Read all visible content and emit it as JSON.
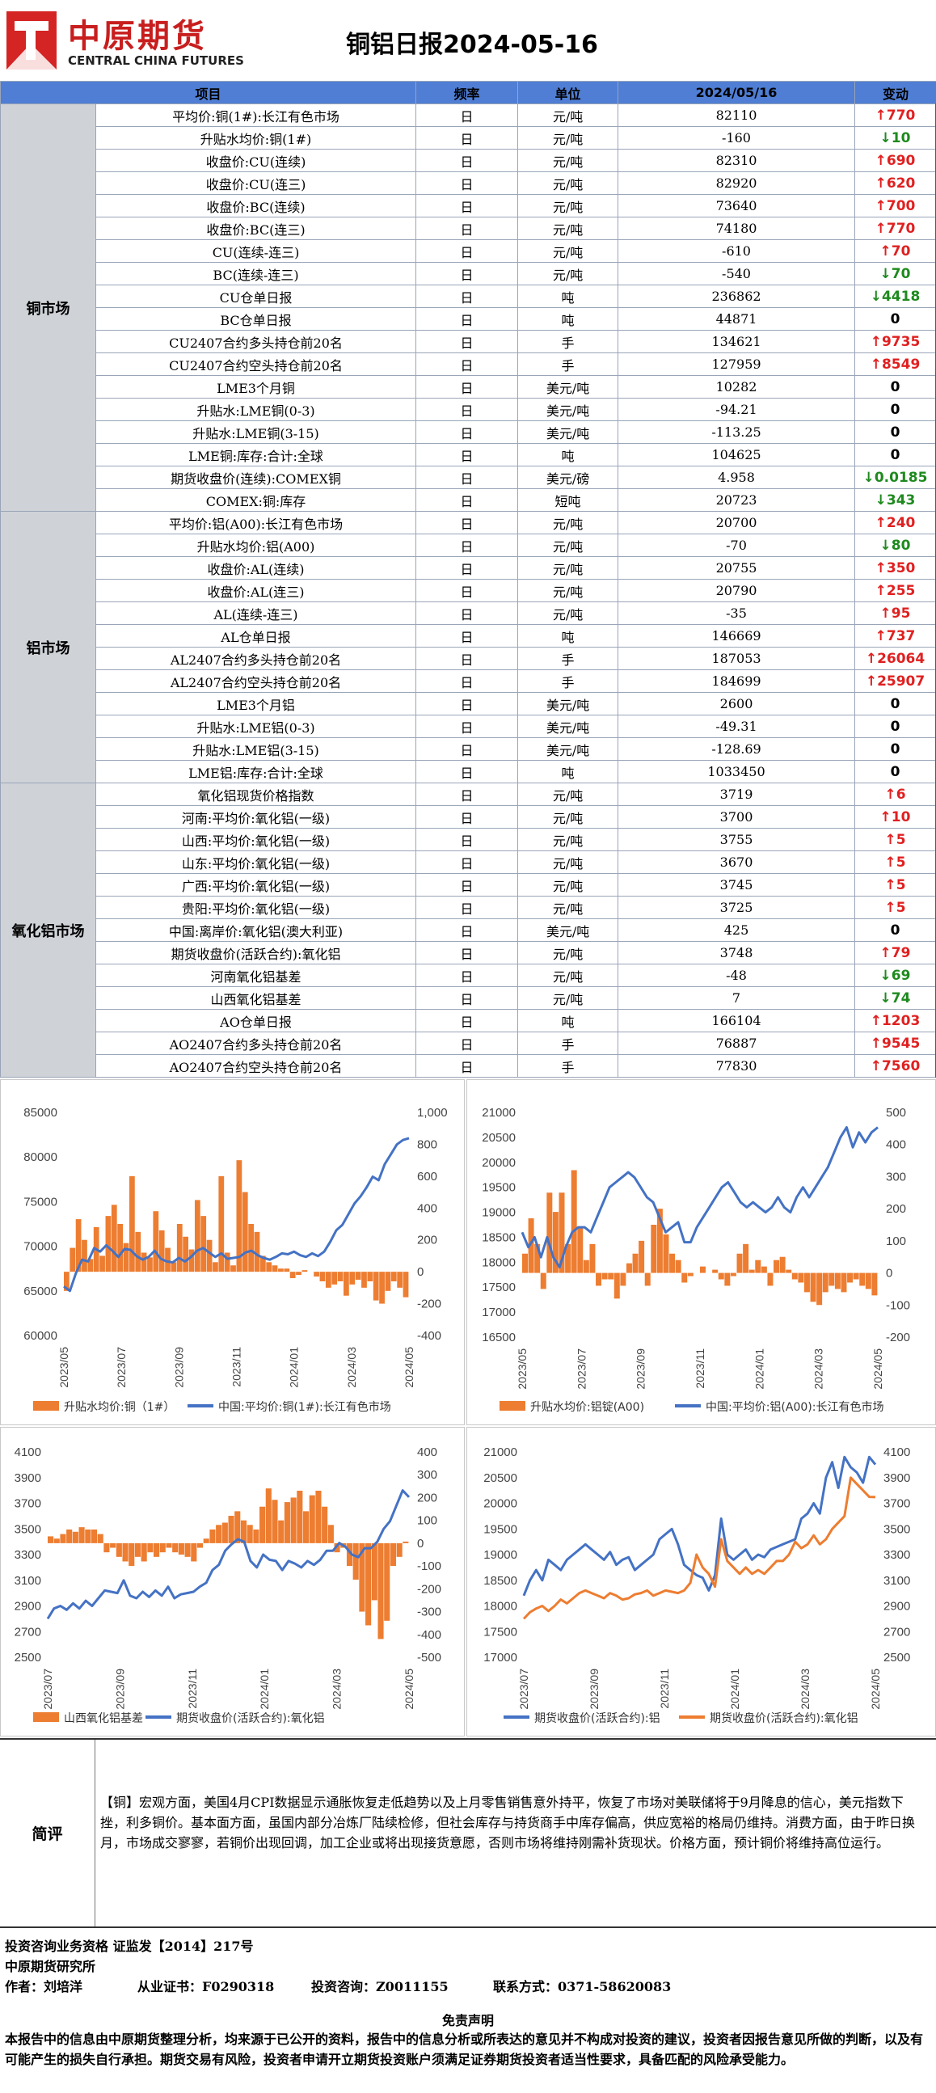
{
  "header": {
    "brand": "中原期货",
    "brand_en": "CENTRAL CHINA FUTURES",
    "title": "铜铝日报2024-05-16"
  },
  "table": {
    "headers": [
      "项目",
      "频率",
      "单位",
      "2024/05/16",
      "变动"
    ],
    "sections": [
      {
        "name": "铜市场",
        "rows": [
          [
            "平均价:铜(1#):长江有色市场",
            "日",
            "元/吨",
            "82110",
            "up",
            "770"
          ],
          [
            "升贴水均价:铜(1#)",
            "日",
            "元/吨",
            "-160",
            "down",
            "10"
          ],
          [
            "收盘价:CU(连续)",
            "日",
            "元/吨",
            "82310",
            "up",
            "690"
          ],
          [
            "收盘价:CU(连三)",
            "日",
            "元/吨",
            "82920",
            "up",
            "620"
          ],
          [
            "收盘价:BC(连续)",
            "日",
            "元/吨",
            "73640",
            "up",
            "700"
          ],
          [
            "收盘价:BC(连三)",
            "日",
            "元/吨",
            "74180",
            "up",
            "770"
          ],
          [
            "CU(连续-连三)",
            "日",
            "元/吨",
            "-610",
            "up",
            "70"
          ],
          [
            "BC(连续-连三)",
            "日",
            "元/吨",
            "-540",
            "down",
            "70"
          ],
          [
            "CU仓单日报",
            "日",
            "吨",
            "236862",
            "down",
            "4418"
          ],
          [
            "BC仓单日报",
            "日",
            "吨",
            "44871",
            "flat",
            "0"
          ],
          [
            "CU2407合约多头持仓前20名",
            "日",
            "手",
            "134621",
            "up",
            "9735"
          ],
          [
            "CU2407合约空头持仓前20名",
            "日",
            "手",
            "127959",
            "up",
            "8549"
          ],
          [
            "LME3个月铜",
            "日",
            "美元/吨",
            "10282",
            "flat",
            "0"
          ],
          [
            "升贴水:LME铜(0-3)",
            "日",
            "美元/吨",
            "-94.21",
            "flat",
            "0"
          ],
          [
            "升贴水:LME铜(3-15)",
            "日",
            "美元/吨",
            "-113.25",
            "flat",
            "0"
          ],
          [
            "LME铜:库存:合计:全球",
            "日",
            "吨",
            "104625",
            "flat",
            "0"
          ],
          [
            "期货收盘价(连续):COMEX铜",
            "日",
            "美元/磅",
            "4.958",
            "down",
            "0.0185"
          ],
          [
            "COMEX:铜:库存",
            "日",
            "短吨",
            "20723",
            "down",
            "343"
          ]
        ]
      },
      {
        "name": "铝市场",
        "rows": [
          [
            "平均价:铝(A00):长江有色市场",
            "日",
            "元/吨",
            "20700",
            "up",
            "240"
          ],
          [
            "升贴水均价:铝(A00)",
            "日",
            "元/吨",
            "-70",
            "down",
            "80"
          ],
          [
            "收盘价:AL(连续)",
            "日",
            "元/吨",
            "20755",
            "up",
            "350"
          ],
          [
            "收盘价:AL(连三)",
            "日",
            "元/吨",
            "20790",
            "up",
            "255"
          ],
          [
            "AL(连续-连三)",
            "日",
            "元/吨",
            "-35",
            "up",
            "95"
          ],
          [
            "AL仓单日报",
            "日",
            "吨",
            "146669",
            "up",
            "737"
          ],
          [
            "AL2407合约多头持仓前20名",
            "日",
            "手",
            "187053",
            "up",
            "26064"
          ],
          [
            "AL2407合约空头持仓前20名",
            "日",
            "手",
            "184699",
            "up",
            "25907"
          ],
          [
            "LME3个月铝",
            "日",
            "美元/吨",
            "2600",
            "flat",
            "0"
          ],
          [
            "升贴水:LME铝(0-3)",
            "日",
            "美元/吨",
            "-49.31",
            "flat",
            "0"
          ],
          [
            "升贴水:LME铝(3-15)",
            "日",
            "美元/吨",
            "-128.69",
            "flat",
            "0"
          ],
          [
            "LME铝:库存:合计:全球",
            "日",
            "吨",
            "1033450",
            "flat",
            "0"
          ]
        ]
      },
      {
        "name": "氧化铝市场",
        "rows": [
          [
            "氧化铝现货价格指数",
            "日",
            "元/吨",
            "3719",
            "up",
            "6"
          ],
          [
            "河南:平均价:氧化铝(一级)",
            "日",
            "元/吨",
            "3700",
            "up",
            "10"
          ],
          [
            "山西:平均价:氧化铝(一级)",
            "日",
            "元/吨",
            "3755",
            "up",
            "5"
          ],
          [
            "山东:平均价:氧化铝(一级)",
            "日",
            "元/吨",
            "3670",
            "up",
            "5"
          ],
          [
            "广西:平均价:氧化铝(一级)",
            "日",
            "元/吨",
            "3745",
            "up",
            "5"
          ],
          [
            "贵阳:平均价:氧化铝(一级)",
            "日",
            "元/吨",
            "3725",
            "up",
            "5"
          ],
          [
            "中国:离岸价:氧化铝(澳大利亚)",
            "日",
            "美元/吨",
            "425",
            "flat",
            "0"
          ],
          [
            "期货收盘价(活跃合约):氧化铝",
            "日",
            "元/吨",
            "3748",
            "up",
            "79"
          ],
          [
            "河南氧化铝基差",
            "日",
            "元/吨",
            "-48",
            "down",
            "69"
          ],
          [
            "山西氧化铝基差",
            "日",
            "元/吨",
            "7",
            "down",
            "74"
          ],
          [
            "AO仓单日报",
            "日",
            "吨",
            "166104",
            "up",
            "1203"
          ],
          [
            "AO2407合约多头持仓前20名",
            "日",
            "手",
            "76887",
            "up",
            "9545"
          ],
          [
            "AO2407合约空头持仓前20名",
            "日",
            "手",
            "77830",
            "up",
            "7560"
          ]
        ]
      }
    ]
  },
  "chart_data": [
    {
      "type": "bar+line",
      "title": "",
      "left_axis": {
        "ticks": [
          "85000",
          "80000",
          "75000",
          "70000",
          "65000",
          "60000"
        ],
        "range": [
          60000,
          85000
        ]
      },
      "right_axis": {
        "ticks": [
          "1,000",
          "800",
          "600",
          "400",
          "200",
          "0",
          "-200",
          "-400"
        ],
        "range": [
          -400,
          1000
        ]
      },
      "x_ticks": [
        "2023/05",
        "2023/07",
        "2023/09",
        "2023/11",
        "2024/01",
        "2024/03",
        "2024/05"
      ],
      "series": [
        {
          "name": "升贴水均价:铜（1#）",
          "kind": "bar",
          "axis": "right",
          "values": [
            -120,
            150,
            330,
            200,
            80,
            280,
            100,
            350,
            420,
            300,
            180,
            600,
            250,
            120,
            90,
            380,
            260,
            150,
            60,
            300,
            220,
            140,
            450,
            350,
            200,
            60,
            600,
            120,
            40,
            700,
            500,
            300,
            250,
            100,
            60,
            40,
            20,
            20,
            -40,
            -20,
            10,
            0,
            -30,
            -60,
            -100,
            -80,
            -60,
            -150,
            -80,
            -50,
            -100,
            -60,
            -180,
            -200,
            -120,
            -60,
            -100,
            -160
          ]
        },
        {
          "name": "中国:平均价:铜(1#):长江有色市场",
          "kind": "line",
          "axis": "left",
          "values": [
            65500,
            65000,
            67000,
            68500,
            68300,
            69800,
            69400,
            70100,
            69500,
            68800,
            69700,
            69600,
            68900,
            68500,
            68800,
            69500,
            68600,
            68300,
            68200,
            68700,
            68300,
            68800,
            69500,
            69800,
            69300,
            68800,
            69200,
            68600,
            68700,
            68800,
            69300,
            69500,
            69000,
            68700,
            68500,
            68800,
            69200,
            69100,
            69400,
            69000,
            68800,
            69200,
            68900,
            69400,
            70500,
            71800,
            72400,
            73600,
            74800,
            75600,
            76600,
            77800,
            77400,
            79200,
            80300,
            81400,
            81900,
            82110
          ]
        }
      ]
    },
    {
      "type": "bar+line",
      "title": "",
      "left_axis": {
        "ticks": [
          "21000",
          "20500",
          "20000",
          "19500",
          "19000",
          "18500",
          "18000",
          "17500",
          "17000",
          "16500"
        ],
        "range": [
          16500,
          21000
        ]
      },
      "right_axis": {
        "ticks": [
          "500",
          "400",
          "300",
          "200",
          "100",
          "0",
          "-100",
          "-200"
        ],
        "range": [
          -200,
          500
        ]
      },
      "x_ticks": [
        "2023/05",
        "2023/07",
        "2023/09",
        "2023/11",
        "2024/01",
        "2024/03",
        "2024/05"
      ],
      "series": [
        {
          "name": "升贴水均价:铝锭(A00)",
          "kind": "bar",
          "axis": "right",
          "values": [
            60,
            170,
            90,
            -50,
            250,
            190,
            250,
            90,
            320,
            140,
            40,
            90,
            -40,
            -20,
            -20,
            -80,
            -40,
            30,
            60,
            100,
            -40,
            150,
            200,
            120,
            60,
            40,
            -30,
            -10,
            0,
            20,
            0,
            10,
            -20,
            -40,
            -10,
            60,
            90,
            10,
            40,
            20,
            -40,
            40,
            50,
            10,
            -20,
            -30,
            -60,
            -90,
            -100,
            -60,
            -40,
            -50,
            -60,
            -30,
            -20,
            -40,
            -50,
            -70
          ]
        },
        {
          "name": "中国:平均价:铝(A00):长江有色市场",
          "kind": "line",
          "axis": "left",
          "values": [
            18600,
            18300,
            18500,
            18100,
            18500,
            18100,
            17900,
            18300,
            18600,
            18700,
            18700,
            18600,
            18900,
            19200,
            19500,
            19600,
            19700,
            19800,
            19700,
            19500,
            19300,
            19200,
            18900,
            18600,
            18700,
            18800,
            18400,
            18400,
            18700,
            18900,
            19100,
            19300,
            19500,
            19600,
            19400,
            19200,
            19100,
            19200,
            19100,
            19000,
            19100,
            19300,
            19100,
            19000,
            19300,
            19500,
            19300,
            19500,
            19700,
            19900,
            20200,
            20500,
            20700,
            20300,
            20600,
            20400,
            20600,
            20700
          ]
        }
      ]
    },
    {
      "type": "bar+line",
      "title": "",
      "left_axis": {
        "ticks": [
          "4100",
          "3900",
          "3700",
          "3500",
          "3300",
          "3100",
          "2900",
          "2700",
          "2500"
        ],
        "range": [
          2500,
          4100
        ]
      },
      "right_axis": {
        "ticks": [
          "400",
          "300",
          "200",
          "100",
          "0",
          "-100",
          "-200",
          "-300",
          "-400",
          "-500"
        ],
        "range": [
          -500,
          400
        ]
      },
      "x_ticks": [
        "2023/07",
        "2023/09",
        "2023/11",
        "2024/01",
        "2024/03",
        "2024/05"
      ],
      "series": [
        {
          "name": "山西氧化铝基差",
          "kind": "bar",
          "axis": "right",
          "values": [
            30,
            20,
            40,
            60,
            50,
            70,
            60,
            60,
            40,
            -40,
            -20,
            -60,
            -80,
            -100,
            -60,
            -80,
            -40,
            -60,
            -40,
            -20,
            -40,
            -50,
            -60,
            -80,
            -20,
            20,
            60,
            80,
            90,
            120,
            140,
            100,
            80,
            60,
            160,
            240,
            190,
            100,
            180,
            200,
            230,
            140,
            210,
            230,
            160,
            80,
            -40,
            -20,
            -100,
            -160,
            -300,
            -360,
            -250,
            -420,
            -340,
            -100,
            -60,
            7
          ]
        },
        {
          "name": "期货收盘价(活跃合约):氧化铝",
          "kind": "line",
          "axis": "left",
          "values": [
            2800,
            2880,
            2900,
            2870,
            2920,
            2880,
            2940,
            2900,
            2960,
            3020,
            3010,
            3000,
            3100,
            2980,
            2960,
            3010,
            2970,
            3020,
            2980,
            3050,
            2960,
            2990,
            3000,
            3010,
            3050,
            3080,
            3180,
            3220,
            3330,
            3380,
            3420,
            3400,
            3250,
            3200,
            3300,
            3260,
            3250,
            3180,
            3250,
            3230,
            3200,
            3250,
            3220,
            3260,
            3330,
            3330,
            3390,
            3360,
            3300,
            3280,
            3350,
            3350,
            3400,
            3500,
            3560,
            3680,
            3800,
            3748
          ]
        }
      ]
    },
    {
      "type": "line",
      "title": "",
      "left_axis": {
        "ticks": [
          "21000",
          "20500",
          "20000",
          "19500",
          "19000",
          "18500",
          "18000",
          "17500",
          "17000"
        ],
        "range": [
          17000,
          21000
        ]
      },
      "right_axis": {
        "ticks": [
          "4100",
          "3900",
          "3700",
          "3500",
          "3300",
          "3100",
          "2900",
          "2700",
          "2500"
        ],
        "range": [
          2500,
          4100
        ]
      },
      "x_ticks": [
        "2023/07",
        "2023/09",
        "2023/11",
        "2024/01",
        "2024/03",
        "2024/05"
      ],
      "series": [
        {
          "name": "期货收盘价(活跃合约):铝",
          "kind": "line",
          "axis": "left",
          "values": [
            18200,
            18500,
            18700,
            18500,
            18900,
            18800,
            18700,
            18900,
            19000,
            19100,
            19200,
            19100,
            19000,
            18900,
            19050,
            18800,
            18900,
            18950,
            18700,
            18800,
            18900,
            19000,
            19300,
            19400,
            19500,
            19200,
            18800,
            18700,
            18600,
            18550,
            18300,
            18600,
            19700,
            19000,
            18900,
            19000,
            19100,
            18900,
            19000,
            18950,
            19100,
            19150,
            19200,
            19250,
            19300,
            19700,
            19800,
            20000,
            19800,
            20500,
            20800,
            20300,
            20900,
            20700,
            20600,
            20400,
            20900,
            20755
          ]
        },
        {
          "name": "期货收盘价(活跃合约):氧化铝",
          "kind": "line",
          "axis": "right",
          "values": [
            2800,
            2850,
            2880,
            2900,
            2860,
            2900,
            2950,
            2920,
            2960,
            3000,
            3020,
            3000,
            2980,
            2960,
            3000,
            2980,
            2950,
            2960,
            2990,
            3000,
            3020,
            2980,
            3000,
            3020,
            3010,
            3000,
            3020,
            3080,
            3300,
            3200,
            3150,
            3050,
            3420,
            3250,
            3200,
            3150,
            3200,
            3150,
            3180,
            3150,
            3200,
            3250,
            3250,
            3300,
            3400,
            3350,
            3380,
            3450,
            3380,
            3420,
            3500,
            3550,
            3600,
            3900,
            3850,
            3800,
            3750,
            3748
          ]
        }
      ]
    }
  ],
  "comment": {
    "label": "简评",
    "text": "【铜】宏观方面，美国4月CPI数据显示通胀恢复走低趋势以及上月零售销售意外持平，恢复了市场对美联储将于9月降息的信心，美元指数下挫，利多铜价。基本面方面，虽国内部分冶炼厂陆续检修，但社会库存与持货商手中库存偏高，供应宽裕的格局仍维持。消费方面，由于昨日换月，市场成交寥寥，若铜价出现回调，加工企业或将出现接货意愿，否则市场将维持刚需补货现状。价格方面，预计铜价将维持高位运行。"
  },
  "footer": {
    "line1": "投资咨询业务资格  证监发【2014】217号",
    "line2": "中原期货研究所",
    "line3a": "作者：刘培洋",
    "line3b": "从业证书：F0290318",
    "line3c": "投资咨询：Z0011155",
    "line3d": "联系方式：0371-58620083",
    "disc_title": "免责声明",
    "disc_text": "本报告中的信息由中原期货整理分析，均来源于已公开的资料，报告中的信息分析或所表达的意见并不构成对投资的建议，投资者因报告意见所做的判断，以及有可能产生的损失自行承担。期货交易有风险，投资者申请开立期货投资账户须满足证券期货投资者适当性要求，具备匹配的风险承受能力。"
  }
}
